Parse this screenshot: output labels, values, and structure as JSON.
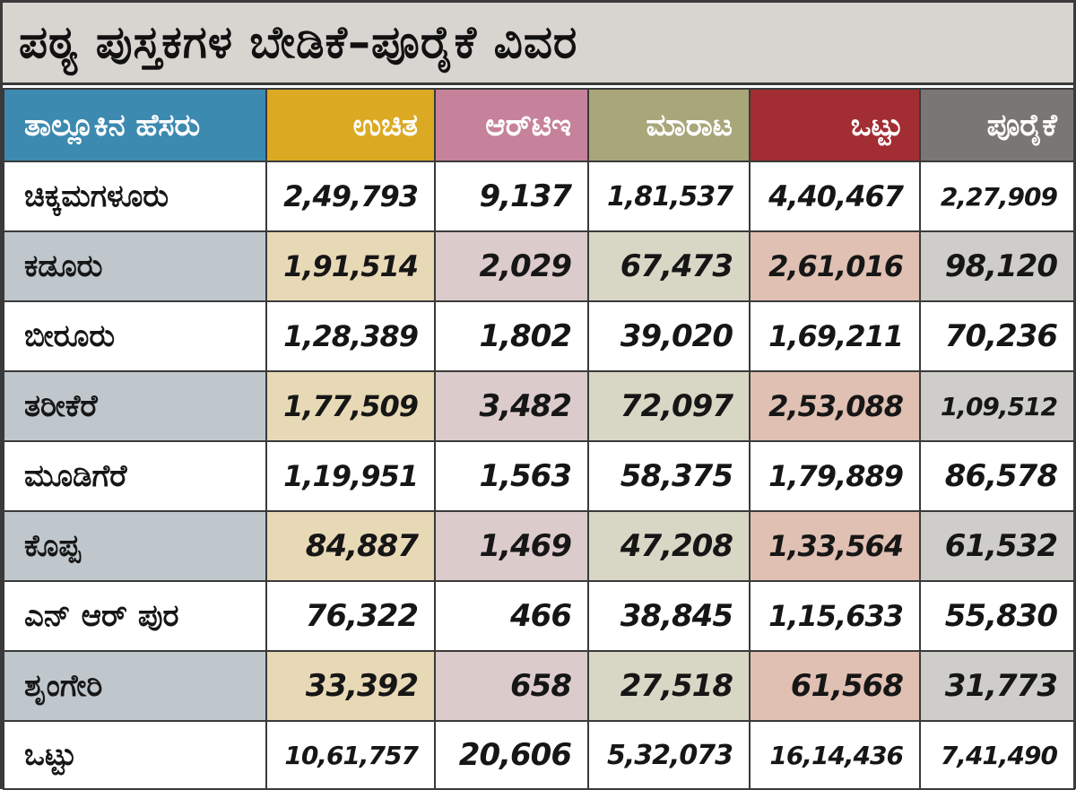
{
  "title": "ಪಠ್ಯ ಪುಸ್ತಕಗಳ ಬೇಡಿಕೆ–ಪೂರೈಕೆ ವಿವರ",
  "colors": {
    "title_bg": "#d8d4cf",
    "header": [
      "#3d8ab0",
      "#dcaa22",
      "#c6829a",
      "#a9a67a",
      "#a22d32",
      "#7a7673"
    ],
    "shade": [
      "#bfc7cc",
      "#e8d9b6",
      "#dccbcb",
      "#d8d7c5",
      "#e0c0b2",
      "#cfcdca"
    ],
    "white": "#ffffff"
  },
  "chart_data": {
    "type": "table",
    "title": "ಪಠ್ಯ ಪುಸ್ತಕಗಳ ಬೇಡಿಕೆ–ಪೂರೈಕೆ ವಿವರ",
    "columns": [
      "ತಾಲ್ಲೂಕಿನ ಹೆಸರು",
      "ಉಚಿತ",
      "ಆರ್‌ಟಿಇ",
      "ಮಾರಾಟ",
      "ಒಟ್ಟು",
      "ಪೂರೈಕೆ"
    ],
    "rows": [
      [
        "ಚಿಕ್ಕಮಗಳೂರು",
        "2,49,793",
        "9,137",
        "1,81,537",
        "4,40,467",
        "2,27,909"
      ],
      [
        "ಕಡೂರು",
        "1,91,514",
        "2,029",
        "67,473",
        "2,61,016",
        "98,120"
      ],
      [
        "ಬೀರೂರು",
        "1,28,389",
        "1,802",
        "39,020",
        "1,69,211",
        "70,236"
      ],
      [
        "ತರೀಕೆರೆ",
        "1,77,509",
        "3,482",
        "72,097",
        "2,53,088",
        "1,09,512"
      ],
      [
        "ಮೂಡಿಗೆರೆ",
        "1,19,951",
        "1,563",
        "58,375",
        "1,79,889",
        "86,578"
      ],
      [
        "ಕೊಪ್ಪ",
        "84,887",
        "1,469",
        "47,208",
        "1,33,564",
        "61,532"
      ],
      [
        "ಎನ್ ಆರ್ ಪುರ",
        "76,322",
        "466",
        "38,845",
        "1,15,633",
        "55,830"
      ],
      [
        "ಶೃಂಗೇರಿ",
        "33,392",
        "658",
        "27,518",
        "61,568",
        "31,773"
      ],
      [
        "ಒಟ್ಟು",
        "10,61,757",
        "20,606",
        "5,32,073",
        "16,14,436",
        "7,41,490"
      ]
    ]
  }
}
